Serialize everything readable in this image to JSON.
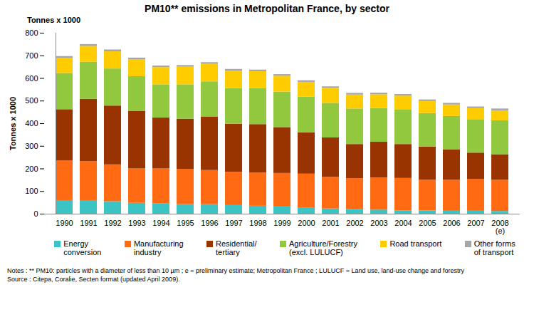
{
  "chart_data": {
    "type": "bar",
    "stacked": true,
    "title": "PM10** emissions in Metropolitan France, by sector",
    "y_unit_label": "Tonnes x 1000",
    "y_label": "Tonnes x 1000",
    "notes": [
      "Notes : ** PM10: particles with a diameter of less than 10 µm ; e = preliminary estimate; Metropolitan France ; LULUCF = Land use, land-use change and forestry",
      "Source : Citepa, Coralie, Secten format (updated April 2009)."
    ],
    "categories": [
      "1990",
      "1991",
      "1992",
      "1993",
      "1994",
      "1995",
      "1996",
      "1997",
      "1998",
      "1999",
      "2000",
      "2001",
      "2002",
      "2003",
      "2004",
      "2005",
      "2006",
      "2007",
      "2008\n(e)"
    ],
    "series": [
      {
        "name": "Energy\nconversion",
        "color": "#3CC4C4",
        "values": [
          60,
          60,
          55,
          48,
          45,
          42,
          42,
          38,
          35,
          32,
          28,
          23,
          20,
          18,
          15,
          14,
          13,
          13,
          12
        ]
      },
      {
        "name": "Manufacturing\nindustry",
        "color": "#FF6A13",
        "values": [
          175,
          172,
          163,
          152,
          155,
          155,
          151,
          147,
          147,
          148,
          149,
          140,
          137,
          142,
          143,
          136,
          137,
          140,
          138
        ]
      },
      {
        "name": "Residential/\ntertiary",
        "color": "#993300",
        "values": [
          227,
          276,
          260,
          255,
          225,
          223,
          237,
          213,
          214,
          203,
          183,
          174,
          151,
          158,
          150,
          147,
          135,
          117,
          113
        ]
      },
      {
        "name": "Agriculture/Forestry\n(excl. LULUCF)",
        "color": "#92C83E",
        "values": [
          160,
          164,
          164,
          153,
          147,
          152,
          155,
          157,
          159,
          157,
          158,
          153,
          157,
          149,
          154,
          148,
          147,
          148,
          150
        ]
      },
      {
        "name": "Road transport",
        "color": "#FFCC00",
        "values": [
          66,
          70,
          76,
          74,
          76,
          78,
          78,
          78,
          75,
          70,
          65,
          66,
          62,
          61,
          60,
          53,
          51,
          49,
          44
        ]
      },
      {
        "name": "Other forms\nof transport",
        "color": "#A6A6A6",
        "values": [
          9,
          8,
          8,
          8,
          7,
          7,
          7,
          7,
          7,
          7,
          7,
          7,
          7,
          7,
          7,
          7,
          7,
          7,
          8
        ]
      }
    ],
    "ylim": [
      0,
      800
    ],
    "yticks": [
      0,
      100,
      200,
      300,
      400,
      500,
      600,
      700,
      800
    ],
    "grid": false,
    "legend": "bottom"
  }
}
